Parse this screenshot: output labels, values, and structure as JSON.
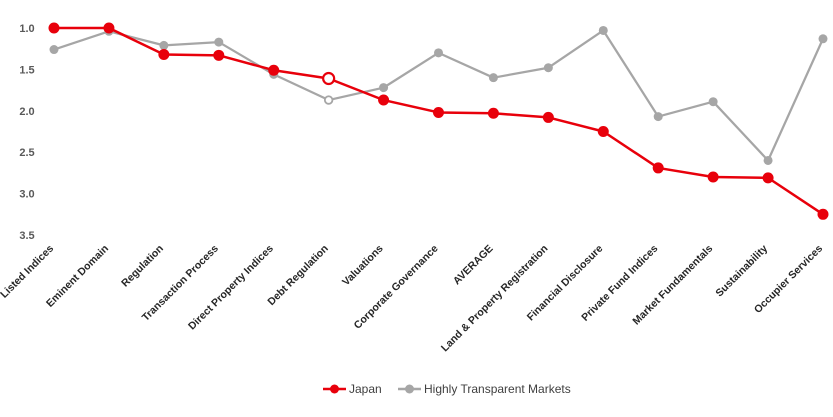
{
  "chart_data": {
    "type": "line",
    "title": "",
    "xlabel": "",
    "ylabel": "",
    "ylim": [
      1.0,
      3.5
    ],
    "y_reversed": true,
    "y_ticks": [
      "1.0",
      "1.5",
      "2.0",
      "2.5",
      "3.0",
      "3.5"
    ],
    "grid": false,
    "legend_position": "bottom",
    "categories": [
      "Listed Indices",
      "Eminent Domain",
      "Regulation",
      "Transaction Process",
      "Direct Property Indices",
      "Debt Regulation",
      "Valuations",
      "Corporate Governance",
      "AVERAGE",
      "Land & Property Registration",
      "Financial Disclosure",
      "Private Fund Indices",
      "Market Fundamentals",
      "Sustainability",
      "Occupier Services"
    ],
    "series": [
      {
        "name": "Japan",
        "color": "#e8000b",
        "values": [
          1.0,
          1.0,
          1.32,
          1.33,
          1.51,
          1.61,
          1.87,
          2.02,
          2.03,
          2.08,
          2.25,
          2.69,
          2.8,
          2.81,
          3.25
        ],
        "hollow_marker_index": 5
      },
      {
        "name": "Highly Transparent Markets",
        "color": "#a6a6a6",
        "values": [
          1.26,
          1.04,
          1.21,
          1.17,
          1.56,
          1.87,
          1.72,
          1.3,
          1.6,
          1.48,
          1.03,
          2.07,
          1.89,
          2.6,
          1.13
        ],
        "hollow_marker_index": 5
      }
    ]
  }
}
